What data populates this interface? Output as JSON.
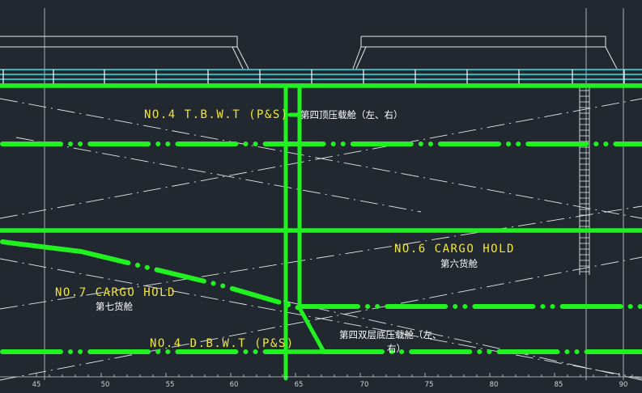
{
  "labels": {
    "tbwt_en": "NO.4  T.B.W.T (P&S)",
    "tbwt_cn": "第四顶压载舱（左、右）",
    "hold6_en": "NO.6  CARGO  HOLD",
    "hold6_cn": "第六货舱",
    "hold7_en": "NO.7  CARGO  HOLD",
    "hold7_cn": "第七货舱",
    "dbwt_en": "NO.4  D.B.W.T (P&S)",
    "dbwt_cn_line1": "第四双层底压载舱（左、",
    "dbwt_cn_line2": "右）"
  },
  "frame_ticks": [
    "45",
    "50",
    "55",
    "60",
    "65",
    "70",
    "75",
    "80",
    "85",
    "90"
  ],
  "colors": {
    "background": "#212830",
    "pipe": "#21f021",
    "deck_rail": "#2fe6ea",
    "label_en": "#f2e53a",
    "label_cn": "#ffffff",
    "linework": "#e6e6e6"
  }
}
